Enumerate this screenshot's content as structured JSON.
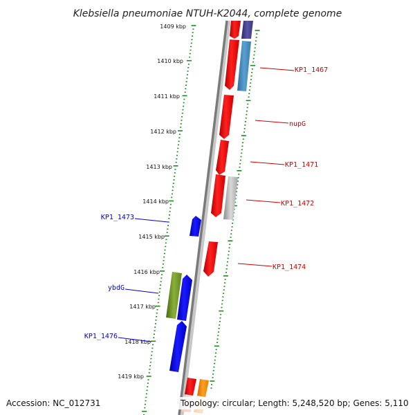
{
  "title": "Klebsiella pneumoniae NTUH-K2044, complete genome",
  "footer": {
    "accession": "Accession: NC_012731",
    "topology": "Topology: circular; Length: 5,248,520 bp; Genes: 5,110"
  },
  "kbp_ticks": [
    "1409 kbp",
    "1410 kbp",
    "1411 kbp",
    "1412 kbp",
    "1413 kbp",
    "1414 kbp",
    "1415 kbp",
    "1416 kbp",
    "1417 kbp",
    "1418 kbp",
    "1419 kbp"
  ],
  "gene_labels": {
    "right": [
      "KP1_1467",
      "nupG",
      "KP1_1471",
      "KP1_1472",
      "KP1_1474"
    ],
    "left": [
      "KP1_1473",
      "ybdG",
      "KP1_1476"
    ]
  },
  "colors": {
    "forward_strand": "#ff0000",
    "reverse_strand": "#0000ff",
    "right_label": "#cc0000",
    "left_label": "#0000cc",
    "ticks": "#1a8a1a",
    "backbone": "#888888"
  }
}
